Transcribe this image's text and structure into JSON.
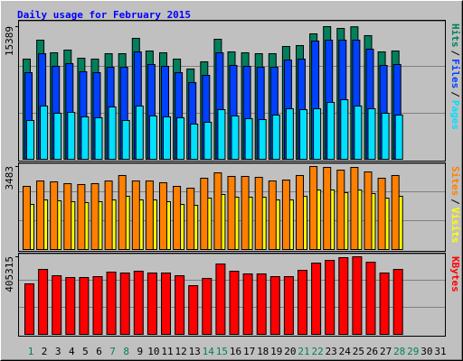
{
  "chart_data": {
    "type": "bar",
    "title": "Daily usage for February 2015",
    "categories": [
      "1",
      "2",
      "3",
      "4",
      "5",
      "6",
      "7",
      "8",
      "9",
      "10",
      "11",
      "12",
      "13",
      "14",
      "15",
      "16",
      "17",
      "18",
      "19",
      "20",
      "21",
      "22",
      "23",
      "24",
      "25",
      "26",
      "27",
      "28",
      "29",
      "30",
      "31"
    ],
    "category_colors": [
      "#00805C",
      "#000000",
      "#000000",
      "#000000",
      "#000000",
      "#000000",
      "#00805C",
      "#00805C",
      "#000000",
      "#000000",
      "#000000",
      "#000000",
      "#000000",
      "#00805C",
      "#00805C",
      "#000000",
      "#000000",
      "#000000",
      "#000000",
      "#000000",
      "#00805C",
      "#00805C",
      "#000000",
      "#000000",
      "#000000",
      "#000000",
      "#000000",
      "#00805C",
      "#00805C",
      "#000000",
      "#000000"
    ],
    "label_separator": "/",
    "panels": [
      {
        "ylim": [
          0,
          15389
        ],
        "yticks": [
          15389
        ],
        "series": [
          {
            "name": "Hits",
            "color": "#00805C",
            "values": [
              11621,
              13820,
              12354,
              12668,
              11726,
              11621,
              12249,
              12249,
              14029,
              12563,
              12354,
              11621,
              10469,
              11307,
              13924,
              12458,
              12354,
              12249,
              12249,
              13087,
              13191,
              14552,
              15389,
              15180,
              15370,
              14343,
              12458,
              12563,
              null,
              null,
              null
            ]
          },
          {
            "name": "Files",
            "color": "#0040FF",
            "values": [
              10051,
              12250,
              10784,
              11098,
              10156,
              10051,
              10679,
              10679,
              12459,
              10994,
              10784,
              10051,
              8900,
              9737,
              12355,
              10889,
              10784,
              10679,
              10679,
              11517,
              11622,
              13716,
              13820,
              13820,
              13820,
              12773,
              10889,
              10994,
              null,
              null,
              null
            ]
          },
          {
            "name": "Pages",
            "color": "#00E0FF",
            "values": [
              4502,
              6177,
              5340,
              5444,
              4921,
              4816,
              6073,
              4502,
              6177,
              5026,
              4921,
              4816,
              4083,
              4293,
              5758,
              5026,
              4712,
              4607,
              5130,
              5863,
              5758,
              5863,
              6596,
              6910,
              6177,
              5863,
              5340,
              5130,
              null,
              null,
              null
            ]
          }
        ]
      },
      {
        "ylim": [
          0,
          3483
        ],
        "yticks": [
          3483
        ],
        "series": [
          {
            "name": "Sites",
            "color": "#FF8000",
            "values": [
              2650,
              2877,
              2840,
              2764,
              2726,
              2764,
              2877,
              3105,
              2877,
              2877,
              2802,
              2650,
              2574,
              2991,
              3218,
              3067,
              3067,
              3029,
              2877,
              2915,
              3105,
              3483,
              3445,
              3332,
              3445,
              3256,
              2991,
              3105,
              null,
              null,
              null
            ]
          },
          {
            "name": "Visits",
            "color": "#FFFF00",
            "values": [
              1893,
              2082,
              2044,
              2007,
              1969,
              2007,
              2082,
              2234,
              2082,
              2082,
              2007,
              1893,
              1855,
              2158,
              2309,
              2196,
              2196,
              2196,
              2082,
              2082,
              2234,
              2499,
              2499,
              2385,
              2499,
              2347,
              2158,
              2234,
              null,
              null,
              null
            ]
          }
        ]
      },
      {
        "ylim": [
          0,
          405315
        ],
        "yticks": [
          405315
        ],
        "series": [
          {
            "name": "KBytes",
            "color": "#FF0000",
            "values": [
              263928,
              339336,
              306345,
              296919,
              296919,
              301632,
              325197,
              320484,
              329910,
              320484,
              320484,
              306345,
              254502,
              292206,
              367614,
              329910,
              315771,
              315771,
              301632,
              301632,
              334623,
              372327,
              386466,
              400605,
              405315,
              377040,
              320484,
              339336,
              null,
              null,
              null
            ]
          }
        ]
      }
    ]
  }
}
